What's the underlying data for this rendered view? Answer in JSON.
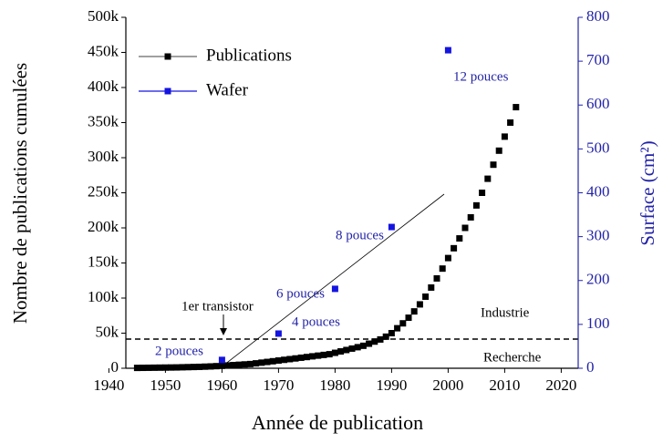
{
  "chart_data": {
    "type": "scatter",
    "x_label": "Année de publication",
    "y_label": "Nombre de publications cumulées",
    "y2_label": "Surface (cm²)",
    "xlim": [
      1943,
      2023
    ],
    "xticks": [
      1940,
      1950,
      1960,
      1970,
      1980,
      1990,
      2000,
      2010,
      2020
    ],
    "ylim": [
      0,
      500000
    ],
    "yticks": [
      0,
      {
        "value": 50000,
        "label": "50k"
      },
      {
        "value": 100000,
        "label": "100k"
      },
      {
        "value": 150000,
        "label": "150k"
      },
      {
        "value": 200000,
        "label": "200k"
      },
      {
        "value": 250000,
        "label": "250k"
      },
      {
        "value": 300000,
        "label": "300k"
      },
      {
        "value": 350000,
        "label": "350k"
      },
      {
        "value": 400000,
        "label": "400k"
      },
      {
        "value": 450000,
        "label": "450k"
      },
      {
        "value": 500000,
        "label": "500k"
      }
    ],
    "y2lim": [
      0,
      800
    ],
    "y2ticks": [
      0,
      100,
      200,
      300,
      400,
      500,
      600,
      700,
      800
    ],
    "legend": "upper left",
    "series": [
      {
        "name": "Publications",
        "color": "#000000",
        "x": [
          1945,
          1946,
          1947,
          1948,
          1949,
          1950,
          1951,
          1952,
          1953,
          1954,
          1955,
          1956,
          1957,
          1958,
          1959,
          1960,
          1961,
          1962,
          1963,
          1964,
          1965,
          1966,
          1967,
          1968,
          1969,
          1970,
          1971,
          1972,
          1973,
          1974,
          1975,
          1976,
          1977,
          1978,
          1979,
          1980,
          1981,
          1982,
          1983,
          1984,
          1985,
          1986,
          1987,
          1988,
          1989,
          1990,
          1991,
          1992,
          1993,
          1994,
          1995,
          1996,
          1997,
          1998,
          1999,
          2000,
          2001,
          2002,
          2003,
          2004,
          2005,
          2006,
          2007,
          2008,
          2009,
          2010,
          2011,
          2012
        ],
        "values": [
          500,
          600,
          700,
          800,
          900,
          1000,
          1100,
          1200,
          1400,
          1600,
          1800,
          2000,
          2300,
          2600,
          3000,
          3500,
          4000,
          4500,
          5000,
          5500,
          6000,
          7000,
          8000,
          9000,
          10000,
          11000,
          12000,
          13000,
          14000,
          15000,
          16000,
          17000,
          18000,
          19000,
          20000,
          22000,
          24000,
          26000,
          28000,
          30000,
          32000,
          35000,
          38000,
          41000,
          45000,
          50000,
          57000,
          64000,
          72000,
          81000,
          91000,
          102000,
          115000,
          128000,
          142000,
          157000,
          171000,
          185000,
          200000,
          215000,
          232000,
          250000,
          270000,
          290000,
          310000,
          330000,
          350000,
          372000
        ]
      },
      {
        "name": "Wafer",
        "color": "#1414e0",
        "axis": "y2",
        "x": [
          1960,
          1970,
          1980,
          1990,
          2000
        ],
        "values": [
          19,
          79,
          181,
          322,
          725
        ]
      }
    ],
    "annotations": [
      "12 pouces",
      "8 pouces",
      "6 pouces",
      "4 pouces",
      "2 pouces",
      "1er transistor",
      "Industrie",
      "Recherche"
    ]
  }
}
